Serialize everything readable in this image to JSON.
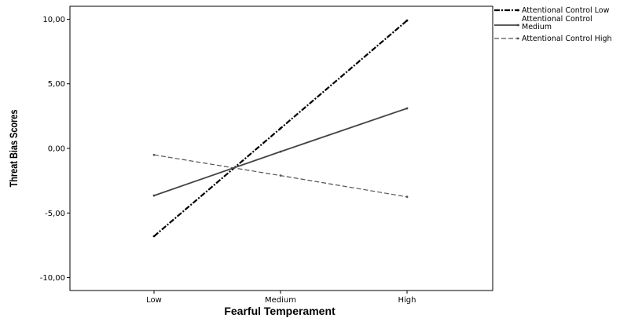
{
  "chart_data": {
    "type": "line",
    "title": "",
    "xlabel": "Fearful Temperament",
    "ylabel": "Threat Bias Scores",
    "categories": [
      "Low",
      "Medium",
      "High"
    ],
    "ylim": [
      -11.0,
      11.0
    ],
    "yticks": [
      "10,00",
      "5,00",
      "0,00",
      "-5,00",
      "-10,00"
    ],
    "ytick_values": [
      10,
      5,
      0,
      -5,
      -10
    ],
    "grid": false,
    "legend_position": "top-right",
    "series": [
      {
        "name": "Attentional Control Low",
        "values": [
          -6.8,
          1.55,
          9.9
        ],
        "color": "#000000",
        "style": "dash-dot"
      },
      {
        "name": "Attentional Control Medium",
        "values": [
          -3.65,
          -0.25,
          3.1
        ],
        "color": "#444444",
        "style": "solid"
      },
      {
        "name": "Attentional Control High",
        "values": [
          -0.5,
          -2.1,
          -3.75
        ],
        "color": "#555555",
        "style": "dash"
      }
    ]
  }
}
